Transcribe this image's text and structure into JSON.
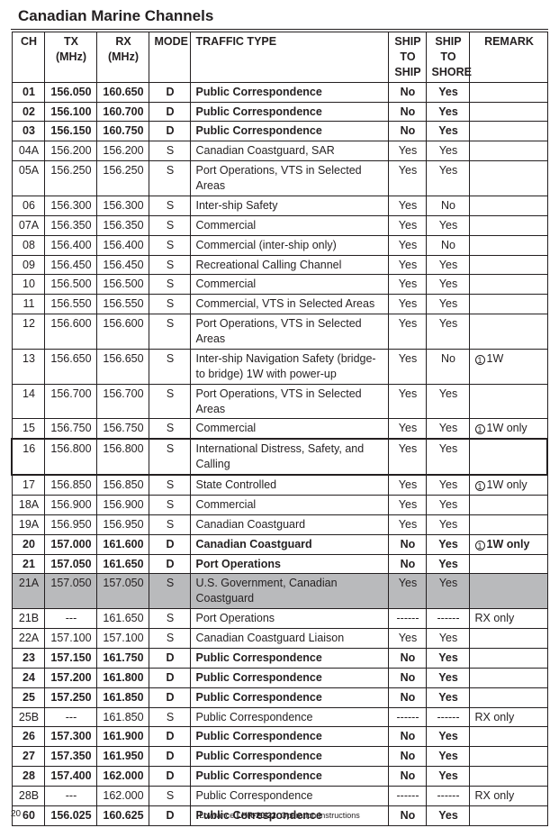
{
  "title": "Canadian Marine Channels",
  "footer": {
    "brand": "Lowrance",
    "model": "LHR-20/22",
    "text": "Operation Instructions",
    "page": "20"
  },
  "headers": {
    "ch": "CH",
    "tx": "TX (MHz)",
    "rx": "RX (MHz)",
    "mode": "MODE",
    "type": "TRAFFIC TYPE",
    "ship": "SHIP TO SHIP",
    "shore": "SHIP TO SHORE",
    "remark": "REMARK"
  },
  "rows": [
    {
      "ch": "01",
      "tx": "156.050",
      "rx": "160.650",
      "mode": "D",
      "type": "Public Correspondence",
      "ship": "No",
      "shore": "Yes",
      "remark": "",
      "bold": true
    },
    {
      "ch": "02",
      "tx": "156.100",
      "rx": "160.700",
      "mode": "D",
      "type": "Public Correspondence",
      "ship": "No",
      "shore": "Yes",
      "remark": "",
      "bold": true
    },
    {
      "ch": "03",
      "tx": "156.150",
      "rx": "160.750",
      "mode": "D",
      "type": "Public Correspondence",
      "ship": "No",
      "shore": "Yes",
      "remark": "",
      "bold": true
    },
    {
      "ch": "04A",
      "tx": "156.200",
      "rx": "156.200",
      "mode": "S",
      "type": "Canadian Coastguard, SAR",
      "ship": "Yes",
      "shore": "Yes",
      "remark": ""
    },
    {
      "ch": "05A",
      "tx": "156.250",
      "rx": "156.250",
      "mode": "S",
      "type": "Port Operations, VTS in Selected Areas",
      "ship": "Yes",
      "shore": "Yes",
      "remark": ""
    },
    {
      "ch": "06",
      "tx": "156.300",
      "rx": "156.300",
      "mode": "S",
      "type": "Inter-ship Safety",
      "ship": "Yes",
      "shore": "No",
      "remark": ""
    },
    {
      "ch": "07A",
      "tx": "156.350",
      "rx": "156.350",
      "mode": "S",
      "type": "Commercial",
      "ship": "Yes",
      "shore": "Yes",
      "remark": ""
    },
    {
      "ch": "08",
      "tx": "156.400",
      "rx": "156.400",
      "mode": "S",
      "type": "Commercial (inter-ship only)",
      "ship": "Yes",
      "shore": "No",
      "remark": ""
    },
    {
      "ch": "09",
      "tx": "156.450",
      "rx": "156.450",
      "mode": "S",
      "type": "Recreational Calling Channel",
      "ship": "Yes",
      "shore": "Yes",
      "remark": ""
    },
    {
      "ch": "10",
      "tx": "156.500",
      "rx": "156.500",
      "mode": "S",
      "type": "Commercial",
      "ship": "Yes",
      "shore": "Yes",
      "remark": ""
    },
    {
      "ch": "11",
      "tx": "156.550",
      "rx": "156.550",
      "mode": "S",
      "type": "Commercial, VTS in Selected Areas",
      "ship": "Yes",
      "shore": "Yes",
      "remark": ""
    },
    {
      "ch": "12",
      "tx": "156.600",
      "rx": "156.600",
      "mode": "S",
      "type": "Port Operations, VTS in Selected Areas",
      "ship": "Yes",
      "shore": "Yes",
      "remark": ""
    },
    {
      "ch": "13",
      "tx": "156.650",
      "rx": "156.650",
      "mode": "S",
      "type": "Inter-ship Navigation Safety (bridge-to bridge) 1W with power-up",
      "ship": "Yes",
      "shore": "No",
      "remark": "1W",
      "icon": true
    },
    {
      "ch": "14",
      "tx": "156.700",
      "rx": "156.700",
      "mode": "S",
      "type": "Port Operations, VTS in Selected Areas",
      "ship": "Yes",
      "shore": "Yes",
      "remark": ""
    },
    {
      "ch": "15",
      "tx": "156.750",
      "rx": "156.750",
      "mode": "S",
      "type": "Commercial",
      "ship": "Yes",
      "shore": "Yes",
      "remark": "1W only",
      "icon": true
    },
    {
      "ch": "16",
      "tx": "156.800",
      "rx": "156.800",
      "mode": "S",
      "type": "International Distress, Safety, and Calling",
      "ship": "Yes",
      "shore": "Yes",
      "remark": "",
      "heavy": true
    },
    {
      "ch": "17",
      "tx": "156.850",
      "rx": "156.850",
      "mode": "S",
      "type": "State Controlled",
      "ship": "Yes",
      "shore": "Yes",
      "remark": "1W only",
      "icon": true
    },
    {
      "ch": "18A",
      "tx": "156.900",
      "rx": "156.900",
      "mode": "S",
      "type": "Commercial",
      "ship": "Yes",
      "shore": "Yes",
      "remark": ""
    },
    {
      "ch": "19A",
      "tx": "156.950",
      "rx": "156.950",
      "mode": "S",
      "type": "Canadian Coastguard",
      "ship": "Yes",
      "shore": "Yes",
      "remark": ""
    },
    {
      "ch": "20",
      "tx": "157.000",
      "rx": "161.600",
      "mode": "D",
      "type": "Canadian Coastguard",
      "ship": "No",
      "shore": "Yes",
      "remark": "1W only",
      "icon": true,
      "bold": true
    },
    {
      "ch": "21",
      "tx": "157.050",
      "rx": "161.650",
      "mode": "D",
      "type": "Port Operations",
      "ship": "No",
      "shore": "Yes",
      "remark": "",
      "bold": true
    },
    {
      "ch": "21A",
      "tx": "157.050",
      "rx": "157.050",
      "mode": "S",
      "type": "U.S. Government, Canadian Coastguard",
      "ship": "Yes",
      "shore": "Yes",
      "remark": "",
      "shaded": true
    },
    {
      "ch": "21B",
      "tx": "---",
      "rx": "161.650",
      "mode": "S",
      "type": "Port Operations",
      "ship": "------",
      "shore": "------",
      "remark": "RX only"
    },
    {
      "ch": "22A",
      "tx": "157.100",
      "rx": "157.100",
      "mode": "S",
      "type": "Canadian Coastguard Liaison",
      "ship": "Yes",
      "shore": "Yes",
      "remark": ""
    },
    {
      "ch": "23",
      "tx": "157.150",
      "rx": "161.750",
      "mode": "D",
      "type": "Public Correspondence",
      "ship": "No",
      "shore": "Yes",
      "remark": "",
      "bold": true
    },
    {
      "ch": "24",
      "tx": "157.200",
      "rx": "161.800",
      "mode": "D",
      "type": "Public Correspondence",
      "ship": "No",
      "shore": "Yes",
      "remark": "",
      "bold": true
    },
    {
      "ch": "25",
      "tx": "157.250",
      "rx": "161.850",
      "mode": "D",
      "type": "Public Correspondence",
      "ship": "No",
      "shore": "Yes",
      "remark": "",
      "bold": true
    },
    {
      "ch": "25B",
      "tx": "---",
      "rx": "161.850",
      "mode": "S",
      "type": "Public Correspondence",
      "ship": "------",
      "shore": "------",
      "remark": "RX only"
    },
    {
      "ch": "26",
      "tx": "157.300",
      "rx": "161.900",
      "mode": "D",
      "type": "Public Correspondence",
      "ship": "No",
      "shore": "Yes",
      "remark": "",
      "bold": true
    },
    {
      "ch": "27",
      "tx": "157.350",
      "rx": "161.950",
      "mode": "D",
      "type": "Public Correspondence",
      "ship": "No",
      "shore": "Yes",
      "remark": "",
      "bold": true
    },
    {
      "ch": "28",
      "tx": "157.400",
      "rx": "162.000",
      "mode": "D",
      "type": "Public Correspondence",
      "ship": "No",
      "shore": "Yes",
      "remark": "",
      "bold": true
    },
    {
      "ch": "28B",
      "tx": "---",
      "rx": "162.000",
      "mode": "S",
      "type": "Public Correspondence",
      "ship": "------",
      "shore": "------",
      "remark": "RX only"
    },
    {
      "ch": "60",
      "tx": "156.025",
      "rx": "160.625",
      "mode": "D",
      "type": "Public Correspondence",
      "ship": "No",
      "shore": "Yes",
      "remark": "",
      "bold": true
    }
  ]
}
